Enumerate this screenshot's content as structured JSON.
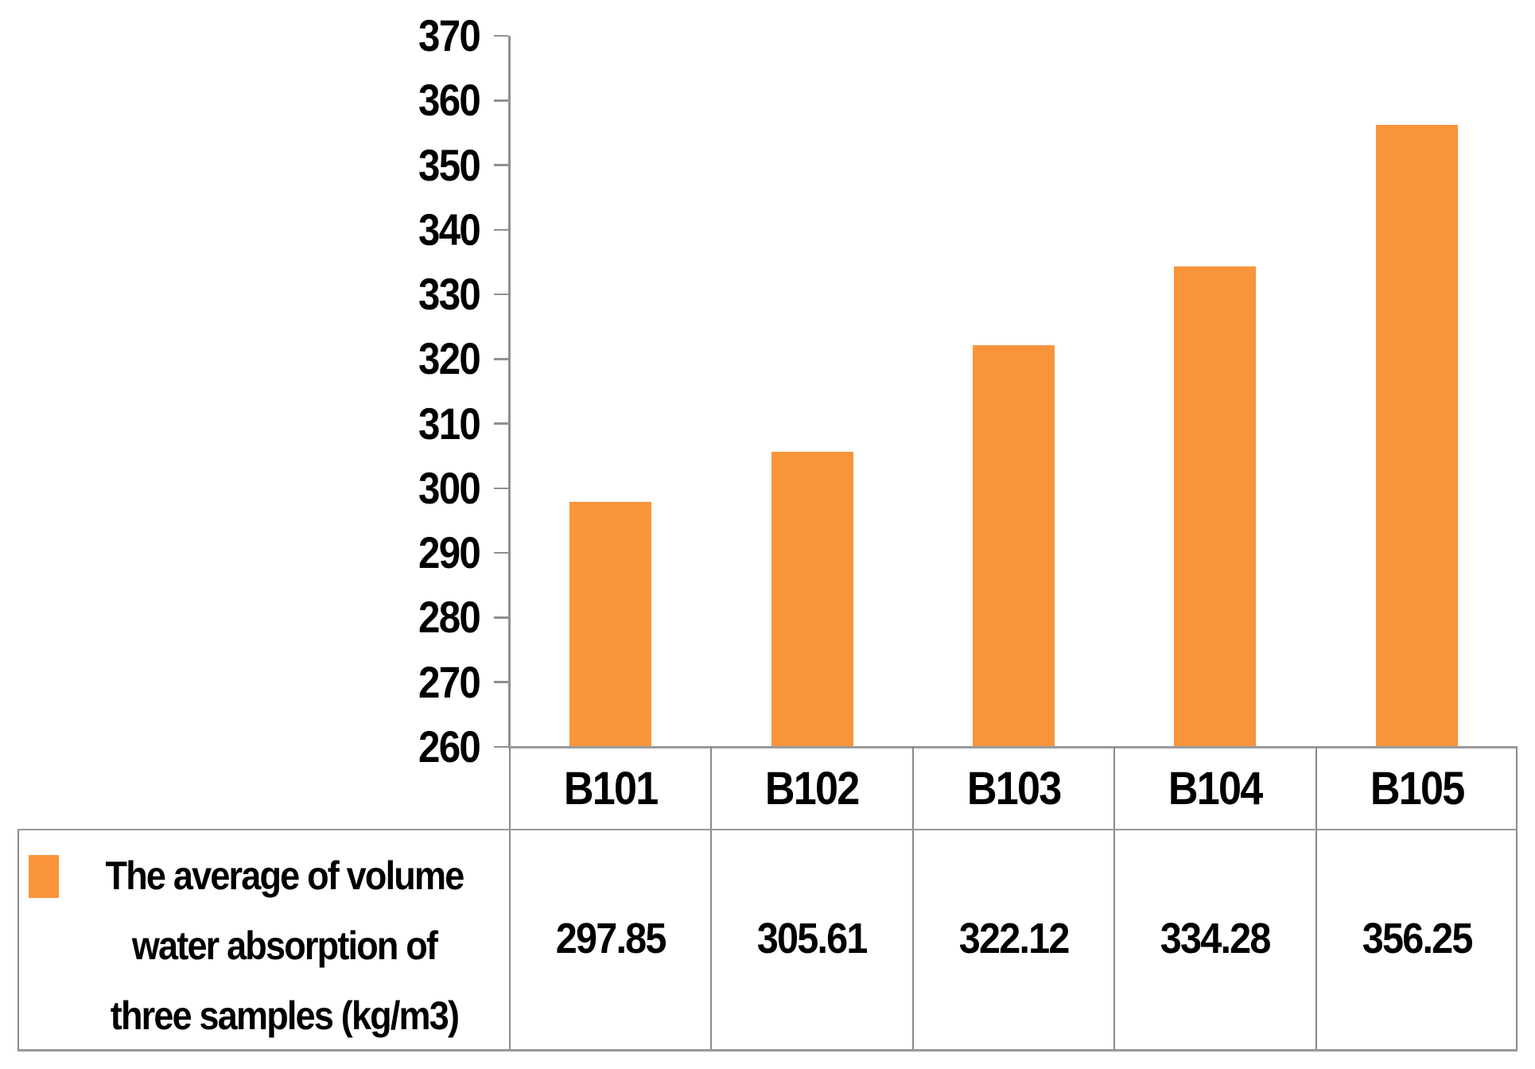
{
  "chart_data": {
    "type": "bar",
    "title": "",
    "xlabel": "",
    "ylabel": "",
    "categories": [
      "B101",
      "B102",
      "B103",
      "B104",
      "B105"
    ],
    "values": [
      297.85,
      305.61,
      322.12,
      334.28,
      356.25
    ],
    "value_labels": [
      "297.85",
      "305.61",
      "322.12",
      "334.28",
      "356.25"
    ],
    "series": [
      {
        "name": "The average of volume water absorption of three samples (kg/m3)",
        "values": [
          297.85,
          305.61,
          322.12,
          334.28,
          356.25
        ]
      }
    ],
    "legend_lines": [
      "The average of volume",
      "water absorption of",
      "three samples (kg/m3)"
    ],
    "legend_position": "left-cell-of-data-table",
    "ylim": [
      260,
      370
    ],
    "ytick_step": 10,
    "ytick_labels": [
      "260",
      "270",
      "280",
      "290",
      "300",
      "310",
      "320",
      "330",
      "340",
      "350",
      "360",
      "370"
    ],
    "grid": false,
    "data_table_shown": true,
    "bar_color": "#F9943B",
    "axis_color": "#909090",
    "border_color": "#8A8A8A",
    "text_color": "#000000",
    "background_color": "#FFFFFF"
  }
}
